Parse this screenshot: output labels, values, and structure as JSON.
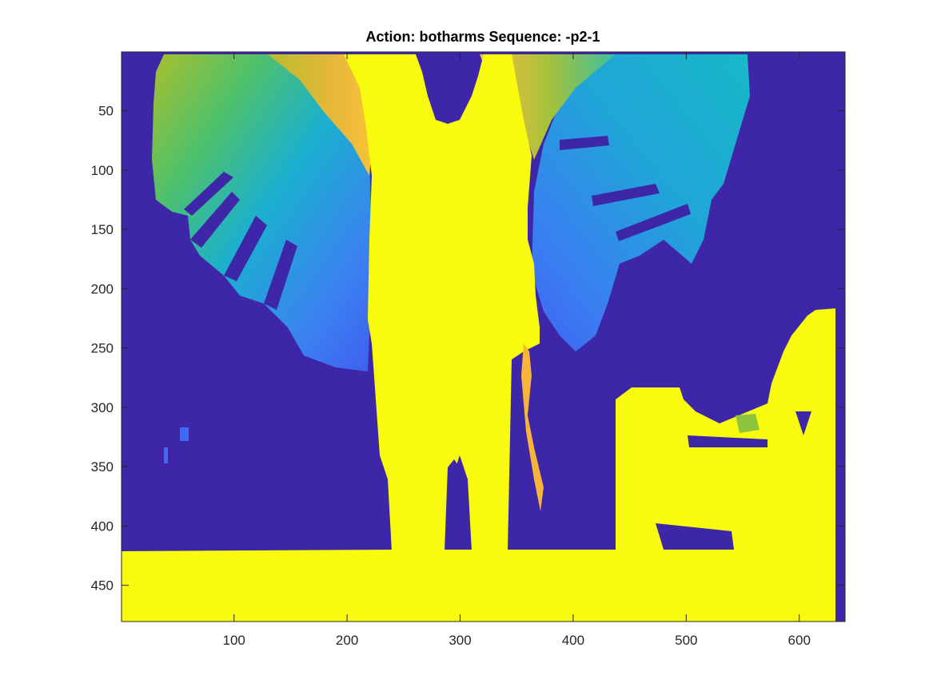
{
  "chart_data": {
    "type": "heatmap",
    "title": "Action: botharms Sequence: -p2-1",
    "xlabel": "",
    "ylabel": "",
    "xlim": [
      1,
      640
    ],
    "ylim": [
      1,
      480
    ],
    "y_direction": "reversed",
    "x_ticks": [
      100,
      200,
      300,
      400,
      500,
      600
    ],
    "y_ticks": [
      50,
      100,
      150,
      200,
      250,
      300,
      350,
      400,
      450
    ],
    "colormap": "parula",
    "grid": false,
    "colorbar": false,
    "image_content": "depth map of a person with both arms raised; arm motion sweeps shown as blue-to-orange gradients; floor and foreground objects saturated yellow; background dark blue",
    "colors": {
      "background_low": "#3e26a8",
      "high": "#f9fb0e",
      "blue": "#3d6bf5",
      "cyan": "#17b8c8",
      "green": "#8dc43c",
      "orange": "#f9b43a"
    }
  }
}
